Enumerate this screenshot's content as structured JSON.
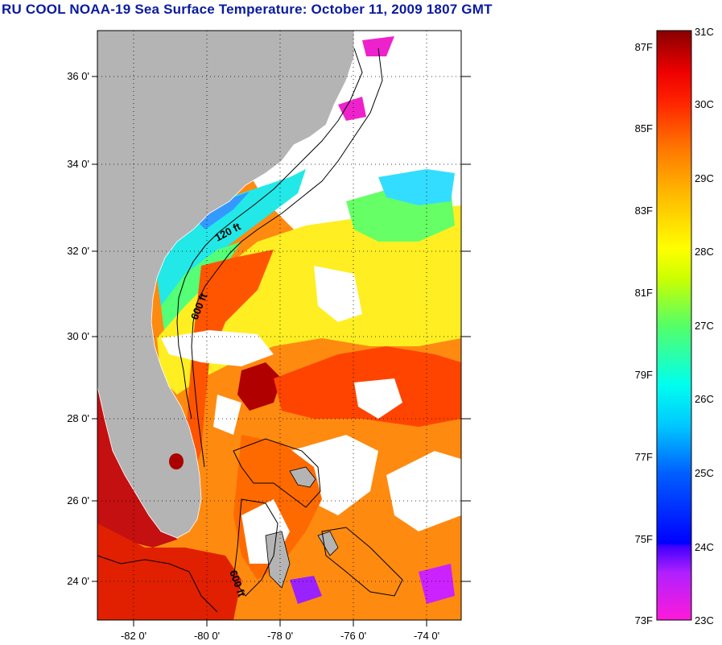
{
  "title": "RU COOL  NOAA-19  Sea Surface Temperature:  October 11, 2009 1807 GMT",
  "map": {
    "lat_ticks": [
      {
        "value": 36,
        "label": "36 0'"
      },
      {
        "value": 34,
        "label": "34 0'"
      },
      {
        "value": 32,
        "label": "32 0'"
      },
      {
        "value": 30,
        "label": "30 0'"
      },
      {
        "value": 28,
        "label": "28 0'"
      },
      {
        "value": 26,
        "label": "26 0'"
      },
      {
        "value": 24,
        "label": "24 0'"
      }
    ],
    "lon_ticks": [
      {
        "value": -82,
        "label": "-82 0'"
      },
      {
        "value": -80,
        "label": "-80 0'"
      },
      {
        "value": -78,
        "label": "-78 0'"
      },
      {
        "value": -76,
        "label": "-76 0'"
      },
      {
        "value": -74,
        "label": "-74 0'"
      }
    ],
    "lat_range": [
      23,
      37
    ],
    "lon_range": [
      -83,
      -73
    ],
    "depth_labels": [
      {
        "label": "120 ft"
      },
      {
        "label": "600 ft"
      },
      {
        "label": "600 ft"
      }
    ],
    "colors": {
      "land": "#b4b4b4",
      "cloud": "#ffffff",
      "contour": "#000000"
    }
  },
  "colorbar": {
    "celsius_labels": [
      "31C",
      "30C",
      "29C",
      "28C",
      "27C",
      "26C",
      "25C",
      "24C",
      "23C"
    ],
    "fahrenheit_labels": [
      "87F",
      "85F",
      "83F",
      "81F",
      "79F",
      "77F",
      "75F",
      "73F"
    ],
    "range_celsius": [
      23,
      31
    ],
    "gradient_colors": [
      "#ff1ad9",
      "#a020ff",
      "#0000ff",
      "#0088ff",
      "#00ffff",
      "#22ff88",
      "#aaff00",
      "#ffff00",
      "#ffaa00",
      "#ff5500",
      "#ff0000",
      "#880000"
    ]
  }
}
